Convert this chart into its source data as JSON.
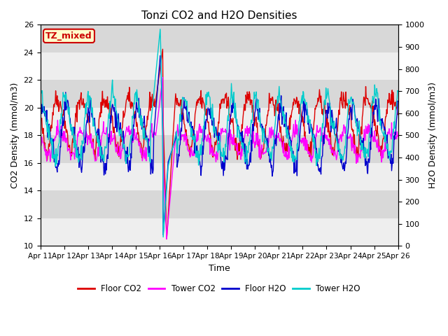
{
  "title": "Tonzi CO2 and H2O Densities",
  "xlabel": "Time",
  "ylabel_left": "CO2 Density (mmol/m3)",
  "ylabel_right": "H2O Density (mmol/m3)",
  "ylim_left": [
    10,
    26
  ],
  "ylim_right": [
    0,
    1000
  ],
  "yticks_left": [
    10,
    12,
    14,
    16,
    18,
    20,
    22,
    24,
    26
  ],
  "yticks_right": [
    0,
    100,
    200,
    300,
    400,
    500,
    600,
    700,
    800,
    900,
    1000
  ],
  "xtick_labels": [
    "Apr 11",
    "Apr 12",
    "Apr 13",
    "Apr 14",
    "Apr 15",
    "Apr 16",
    "Apr 17",
    "Apr 18",
    "Apr 19",
    "Apr 20",
    "Apr 21",
    "Apr 22",
    "Apr 23",
    "Apr 24",
    "Apr 25",
    "Apr 26"
  ],
  "annotation_text": "TZ_mixed",
  "annotation_bg": "#ffffcc",
  "annotation_border": "#cc0000",
  "annotation_text_color": "#cc0000",
  "colors": {
    "floor_co2": "#dd0000",
    "tower_co2": "#ff00ff",
    "floor_h2o": "#0000cc",
    "tower_h2o": "#00cccc"
  },
  "legend_labels": [
    "Floor CO2",
    "Tower CO2",
    "Floor H2O",
    "Tower H2O"
  ],
  "bg_color": "#e8e8e8",
  "band_light": "#eeeeee",
  "band_dark": "#d8d8d8",
  "linewidth": 1.0,
  "fig_width": 6.4,
  "fig_height": 4.8,
  "dpi": 100
}
